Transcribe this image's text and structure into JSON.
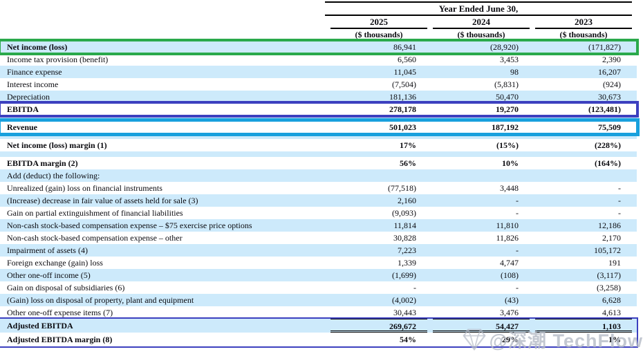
{
  "header": {
    "title": "Year Ended June 30,",
    "years": [
      "2025",
      "2024",
      "2023"
    ],
    "unit_label": "($ thousands)"
  },
  "table": {
    "rows": [
      {
        "label": "Net income (loss)",
        "values": [
          "86,941",
          "(28,920)",
          "(171,827)"
        ],
        "bg": "blue",
        "label_bold": true,
        "box": "green"
      },
      {
        "label": "Income tax provision (benefit)",
        "values": [
          "6,560",
          "3,453",
          "2,390"
        ],
        "bg": "white"
      },
      {
        "label": "Finance expense",
        "values": [
          "11,045",
          "98",
          "16,207"
        ],
        "bg": "blue"
      },
      {
        "label": "Interest income",
        "values": [
          "(7,504)",
          "(5,831)",
          "(924)"
        ],
        "bg": "white"
      },
      {
        "label": "Depreciation",
        "values": [
          "181,136",
          "50,470",
          "30,673"
        ],
        "bg": "blue"
      },
      {
        "label": "EBITDA",
        "values": [
          "278,178",
          "19,270",
          "(123,481)"
        ],
        "bg": "white",
        "label_bold": true,
        "values_bold": true,
        "box": "indigo"
      },
      {
        "spacer": true,
        "bg": "blue",
        "rule_top": true
      },
      {
        "label": "Revenue",
        "values": [
          "501,023",
          "187,192",
          "75,509"
        ],
        "bg": "white",
        "label_bold": true,
        "values_bold": true,
        "box": "cyan"
      },
      {
        "spacer": true,
        "bg": "blue"
      },
      {
        "label": "Net income (loss) margin (1)",
        "values": [
          "17%",
          "(15%)",
          "(228%)"
        ],
        "bg": "white",
        "label_bold": true,
        "values_bold": true
      },
      {
        "spacer": true,
        "bg": "blue"
      },
      {
        "label": "EBITDA margin (2)",
        "values": [
          "56%",
          "10%",
          "(164%)"
        ],
        "bg": "white",
        "label_bold": true,
        "values_bold": true
      },
      {
        "label": "Add (deduct) the following:",
        "values": [
          "",
          "",
          ""
        ],
        "bg": "blue"
      },
      {
        "label": "Unrealized (gain) loss on financial instruments",
        "values": [
          "(77,518)",
          "3,448",
          "-"
        ],
        "bg": "white"
      },
      {
        "label": "(Increase) decrease in fair value of assets held for sale (3)",
        "values": [
          "2,160",
          "-",
          "-"
        ],
        "bg": "blue"
      },
      {
        "label": "Gain on partial extinguishment of financial liabilities",
        "values": [
          "(9,093)",
          "-",
          "-"
        ],
        "bg": "white"
      },
      {
        "label": "Non-cash stock-based compensation expense – $75 exercise price options",
        "values": [
          "11,814",
          "11,810",
          "12,186"
        ],
        "bg": "blue"
      },
      {
        "label": "Non-cash stock-based compensation expense – other",
        "values": [
          "30,828",
          "11,826",
          "2,170"
        ],
        "bg": "white"
      },
      {
        "label": "Impairment of assets (4)",
        "values": [
          "7,223",
          "-",
          "105,172"
        ],
        "bg": "blue"
      },
      {
        "label": "Foreign exchange (gain) loss",
        "values": [
          "1,339",
          "4,747",
          "191"
        ],
        "bg": "white"
      },
      {
        "label": "Other one-off income (5)",
        "values": [
          "(1,699)",
          "(108)",
          "(3,117)"
        ],
        "bg": "blue"
      },
      {
        "label": "Gain on disposal of subsidiaries (6)",
        "values": [
          "-",
          "-",
          "(3,258)"
        ],
        "bg": "white"
      },
      {
        "label": "(Gain) loss on disposal of property, plant and equipment",
        "values": [
          "(4,002)",
          "(43)",
          "6,628"
        ],
        "bg": "blue"
      },
      {
        "label": "Other one-off expense items (7)",
        "values": [
          "30,443",
          "3,476",
          "4,613"
        ],
        "bg": "white"
      }
    ],
    "footer_rows": [
      {
        "label": "Adjusted EBITDA",
        "values": [
          "269,672",
          "54,427",
          "1,103"
        ],
        "bg": "blue",
        "label_bold": true,
        "values_bold": true,
        "rule_top": true,
        "double_bottom": true
      },
      {
        "label": "Adjusted EBITDA margin (8)",
        "values": [
          "54%",
          "29%",
          "1%"
        ],
        "bg": "white",
        "label_bold": true,
        "values_bold": true
      }
    ]
  },
  "watermark": {
    "icon": "diamond-gem-icon",
    "text": "@深潮 TechFlow"
  },
  "colors": {
    "row_highlight": "#cdeafb",
    "box_green": "#2aa94b",
    "box_indigo": "#3c40bf",
    "box_cyan": "#18a0dd",
    "rule": "#000000",
    "watermark_gray": "#b4bac5"
  }
}
